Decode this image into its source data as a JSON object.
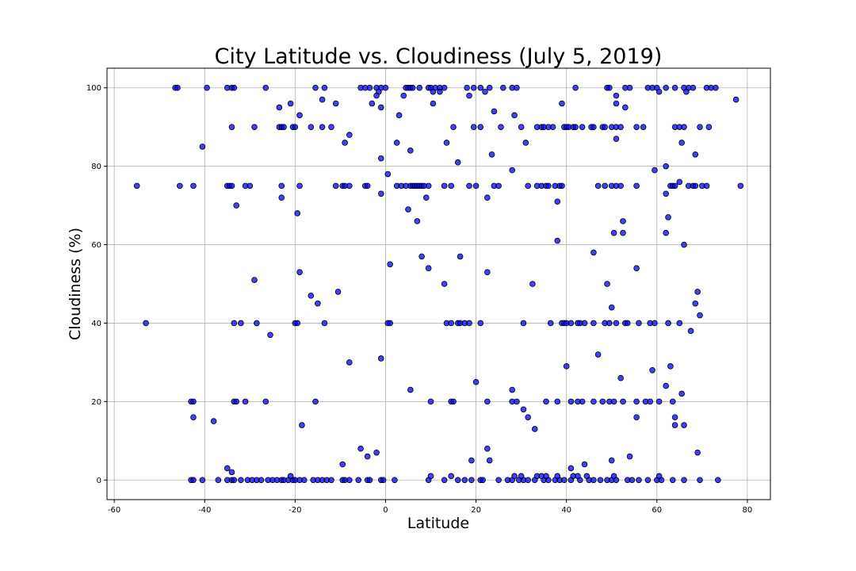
{
  "chart_data": {
    "type": "scatter",
    "title": "City Latitude vs. Cloudiness (July 5, 2019)",
    "x_label": "Latitude",
    "y_label": "Cloudiness (%)",
    "xlim": [
      -61.6,
      85.1
    ],
    "ylim": [
      -5,
      105
    ],
    "xticks": [
      -60,
      -40,
      -20,
      0,
      20,
      40,
      60,
      80
    ],
    "yticks": [
      0,
      20,
      40,
      60,
      80,
      100
    ],
    "grid": true,
    "series": [
      {
        "color": "#0000ff",
        "edgecolor": "#000000",
        "x": [
          -43,
          -42.5,
          -40.5,
          -37,
          -35,
          -34,
          -33.5,
          -32,
          -30.5,
          -29.5,
          -28.5,
          -27.5,
          -26,
          -25,
          -24,
          -23,
          -22.5,
          -21.5,
          -20.5,
          -20,
          -19,
          -18,
          -16,
          -15,
          -14,
          -13,
          -12,
          -9.5,
          -9,
          -8,
          -6,
          -4,
          -3.5,
          -1,
          -0.5,
          2,
          9.5,
          13,
          16,
          17.5,
          19,
          21,
          21.5,
          25,
          27,
          28,
          29.5,
          30.5,
          31.5,
          33,
          35,
          36,
          37.5,
          38.5,
          39.5,
          41,
          43,
          45,
          46,
          47.5,
          49,
          50,
          51,
          53.5,
          54.5,
          56,
          58,
          60,
          61,
          63.5,
          66,
          69.5,
          73.5,
          -21,
          10,
          14.5,
          28.5,
          30,
          33.5,
          34.5,
          35.5,
          38,
          41.5,
          42.5,
          44.5,
          50.5,
          60.5,
          -46.5,
          -46,
          -39.5,
          -35,
          -34,
          -33.5,
          -26.5,
          -15.5,
          -13.5,
          -5.5,
          -4.5,
          -3.5,
          -2,
          -1,
          0,
          4.5,
          5,
          5.5,
          6,
          7.5,
          9.5,
          10,
          11,
          12,
          13,
          18,
          19.5,
          21,
          23,
          26,
          28,
          29,
          42,
          49,
          49.5,
          53,
          54,
          58,
          59,
          60,
          62,
          64,
          66,
          67,
          68,
          71,
          72,
          73,
          -34,
          -29,
          -23.5,
          -23,
          -22.5,
          -20.5,
          -20,
          -16.5,
          -14,
          -12,
          15,
          19.5,
          21,
          25.5,
          30,
          33.5,
          34.5,
          35,
          36,
          37,
          39.5,
          40,
          40.5,
          41.5,
          42,
          43.5,
          45.5,
          46,
          48,
          48.5,
          50,
          51,
          52,
          55.5,
          57,
          64,
          65,
          66,
          69.5,
          71.5,
          -55,
          -45.5,
          -42.5,
          -35,
          -34.5,
          -34,
          -31,
          -30,
          -23,
          -19,
          -11,
          -9.5,
          -9,
          -8,
          -4.5,
          -4,
          2.5,
          3.5,
          4.5,
          5.5,
          6,
          6.5,
          7,
          7.5,
          8,
          8.5,
          9.5,
          13,
          14.5,
          18.5,
          20,
          24,
          25,
          31.5,
          33.5,
          34.5,
          35.5,
          36,
          37.5,
          38.5,
          39,
          47,
          48.5,
          50,
          51,
          52,
          55.5,
          63,
          63.5,
          64,
          67,
          68,
          68.5,
          70,
          71,
          78.5,
          -53,
          -33.5,
          -32,
          -28.5,
          -20,
          -19.5,
          -13.5,
          0.5,
          1,
          13.5,
          14.5,
          16,
          16.5,
          17.5,
          18.5,
          21,
          30.5,
          36.5,
          39,
          39.5,
          40,
          41,
          42.5,
          43,
          44,
          46,
          48.5,
          49.5,
          51,
          53,
          53.5,
          56,
          58.5,
          59.5,
          62.5,
          65,
          -43,
          -42.5,
          -33.5,
          -33,
          -31,
          -26.5,
          -15.5,
          10,
          14.5,
          15,
          22.5,
          28,
          29,
          35.5,
          38,
          41,
          42.5,
          43.5,
          46,
          48,
          49.5,
          50.5,
          52.5,
          55.5,
          57.5,
          58.5,
          60.5,
          63.5,
          -40.5,
          -23.5,
          -21,
          -19,
          -14,
          -11,
          -9,
          -8,
          -3,
          -1,
          -1,
          0.5,
          -1,
          -23,
          -33,
          -19.5,
          1,
          -29,
          -19,
          -16.5,
          -15,
          -10.5,
          -25.5,
          -8,
          -1,
          5.5,
          -18.5,
          -38,
          -42.5,
          -34,
          -35,
          -9.5,
          -5.5,
          -4,
          -2,
          2.5,
          3,
          5.5,
          5,
          7,
          8,
          9,
          9.5,
          10.5,
          13,
          13.5,
          16,
          16.5,
          19,
          20,
          22.5,
          22.5,
          23,
          23.5,
          24,
          22.5,
          28,
          28.5,
          28,
          30.5,
          31.5,
          33,
          32.5,
          31,
          38,
          38,
          39,
          40,
          41,
          44,
          46,
          47,
          49,
          50,
          50,
          51,
          50.5,
          52,
          52.5,
          52.5,
          53,
          54,
          55.5,
          55.5,
          59,
          59.5,
          62,
          62,
          62.5,
          62,
          62,
          63,
          64,
          64,
          65,
          65.5,
          65.5,
          66,
          66,
          67.5,
          68.5,
          69,
          69.5,
          69,
          68.5,
          77.5,
          51,
          51,
          60.5,
          66.5,
          12,
          10.5,
          4,
          -1.5,
          -2,
          18.5,
          22
        ],
        "values": [
          0,
          0,
          0,
          0,
          0,
          0,
          0,
          0,
          0,
          0,
          0,
          0,
          0,
          0,
          0,
          0,
          0,
          0,
          0,
          0,
          0,
          0,
          0,
          0,
          0,
          0,
          0,
          0,
          0,
          0,
          0,
          0,
          0,
          0,
          0,
          0,
          0,
          0,
          0,
          0,
          0,
          0,
          0,
          0,
          0,
          0,
          0,
          0,
          0,
          0,
          0,
          0,
          0,
          0,
          0,
          0,
          0,
          0,
          0,
          0,
          0,
          0,
          0,
          0,
          0,
          0,
          0,
          0,
          0,
          0,
          0,
          0,
          0,
          1,
          1,
          1,
          1,
          1,
          1,
          1,
          1,
          1,
          1,
          1,
          1,
          1,
          1,
          100,
          100,
          100,
          100,
          100,
          100,
          100,
          100,
          100,
          100,
          100,
          100,
          100,
          100,
          100,
          100,
          100,
          100,
          100,
          100,
          100,
          100,
          100,
          100,
          100,
          100,
          100,
          100,
          100,
          100,
          100,
          100,
          100,
          100,
          100,
          100,
          100,
          100,
          100,
          100,
          100,
          100,
          100,
          100,
          100,
          100,
          100,
          100,
          90,
          90,
          90,
          90,
          90,
          90,
          90,
          90,
          90,
          90,
          90,
          90,
          90,
          90,
          90,
          90,
          90,
          90,
          90,
          90,
          90,
          90,
          90,
          90,
          90,
          90,
          90,
          90,
          90,
          90,
          90,
          90,
          90,
          90,
          90,
          90,
          90,
          90,
          90,
          90,
          75,
          75,
          75,
          75,
          75,
          75,
          75,
          75,
          75,
          75,
          75,
          75,
          75,
          75,
          75,
          75,
          75,
          75,
          75,
          75,
          75,
          75,
          75,
          75,
          75,
          75,
          75,
          75,
          75,
          75,
          75,
          75,
          75,
          75,
          75,
          75,
          75,
          75,
          75,
          75,
          75,
          75,
          75,
          75,
          75,
          75,
          75,
          75,
          75,
          75,
          75,
          75,
          75,
          75,
          75,
          75,
          40,
          40,
          40,
          40,
          40,
          40,
          40,
          40,
          40,
          40,
          40,
          40,
          40,
          40,
          40,
          40,
          40,
          40,
          40,
          40,
          40,
          40,
          40,
          40,
          40,
          40,
          40,
          40,
          40,
          40,
          40,
          40,
          40,
          40,
          40,
          40,
          20,
          20,
          20,
          20,
          20,
          20,
          20,
          20,
          20,
          20,
          20,
          20,
          20,
          20,
          20,
          20,
          20,
          20,
          20,
          20,
          20,
          20,
          20,
          20,
          20,
          20,
          20,
          20,
          85,
          95,
          96,
          93,
          97,
          96,
          86,
          88,
          96,
          95,
          82,
          78,
          73,
          72,
          70,
          68,
          55,
          51,
          53,
          47,
          45,
          48,
          37,
          30,
          31,
          23,
          14,
          15,
          16,
          2,
          3,
          4,
          8,
          6,
          7,
          86,
          93,
          84,
          69,
          66,
          57,
          72,
          54,
          96,
          50,
          86,
          81,
          57,
          5,
          25,
          53,
          8,
          5,
          83,
          94,
          72,
          79,
          93,
          23,
          18,
          16,
          13,
          50,
          86,
          71,
          61,
          96,
          29,
          3,
          4,
          58,
          32,
          50,
          44,
          5,
          87,
          63,
          26,
          63,
          66,
          95,
          6,
          54,
          16,
          28,
          79,
          63,
          73,
          67,
          80,
          24,
          29,
          16,
          14,
          76,
          86,
          22,
          14,
          60,
          38,
          45,
          48,
          42,
          7,
          83,
          97,
          98,
          96,
          99,
          99,
          99,
          99,
          98,
          99,
          98,
          98,
          99
        ]
      }
    ]
  }
}
